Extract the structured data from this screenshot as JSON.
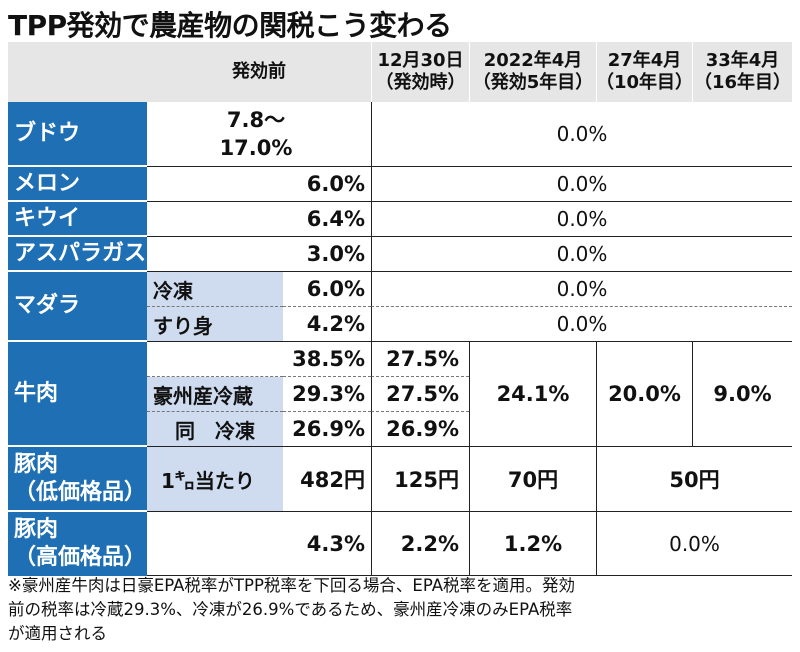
{
  "title": "TPP発効で農産物の関税こう変わる",
  "headers": {
    "before": "発効前",
    "c1": [
      "12月30日",
      "（発効時）"
    ],
    "c2": [
      "2022年4月",
      "（発効5年目）"
    ],
    "c3": [
      "27年4月",
      "（10年目）"
    ],
    "c4": [
      "33年4月",
      "（16年目）"
    ]
  },
  "rows": {
    "grape": {
      "name": "ブドウ",
      "before": [
        "7.8〜",
        "17.0%"
      ],
      "after": "0.0%"
    },
    "melon": {
      "name": "メロン",
      "before": "6.0%",
      "after": "0.0%"
    },
    "kiwi": {
      "name": "キウイ",
      "before": "6.4%",
      "after": "0.0%"
    },
    "asparagus": {
      "name": "アスパラガス",
      "before": "3.0%",
      "after": "0.0%"
    },
    "cod": {
      "name": "マダラ",
      "frozen": {
        "label": "冷凍",
        "before": "6.0%",
        "after": "0.0%"
      },
      "surimi": {
        "label": "すり身",
        "before": "4.2%",
        "after": "0.0%"
      }
    },
    "beef": {
      "name": "牛肉",
      "general": {
        "before": "38.5%",
        "c1": "27.5%"
      },
      "aus_chilled": {
        "label": "豪州産冷蔵",
        "before": "29.3%",
        "c1": "27.5%"
      },
      "aus_frozen": {
        "label": "同　冷凍",
        "before": "26.9%",
        "c1": "26.9%"
      },
      "c2": "24.1%",
      "c3": "20.0%",
      "c4": "9.0%"
    },
    "pork_low": {
      "name": [
        "豚肉",
        "（低価格品）"
      ],
      "unit": "1㌔当たり",
      "before": "482円",
      "c1": "125円",
      "c2": "70円",
      "c34": "50円"
    },
    "pork_high": {
      "name": [
        "豚肉",
        "（高価格品）"
      ],
      "before": "4.3%",
      "c1": "2.2%",
      "c2": "1.2%",
      "c34": "0.0%"
    }
  },
  "note": [
    "※豪州産牛肉は日豪EPA税率がTPP税率を下回る場合、EPA税率を適用。発効",
    "前の税率は冷蔵29.3%、冷凍が26.9%であるため、豪州産冷凍のみEPA税率",
    "が適用される"
  ],
  "colors": {
    "accent": "#1f6fb4",
    "sub": "#cfdcef",
    "header": "#e6e6e6"
  }
}
